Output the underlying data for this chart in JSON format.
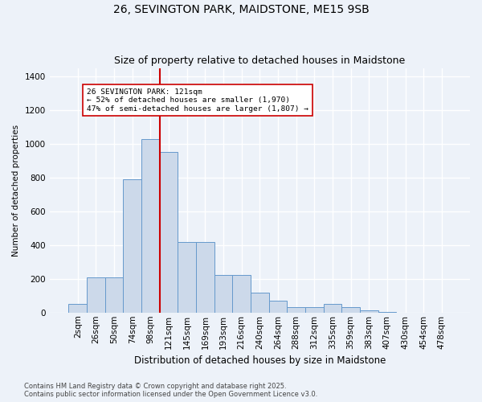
{
  "title": "26, SEVINGTON PARK, MAIDSTONE, ME15 9SB",
  "subtitle": "Size of property relative to detached houses in Maidstone",
  "xlabel": "Distribution of detached houses by size in Maidstone",
  "ylabel": "Number of detached properties",
  "categories": [
    "2sqm",
    "26sqm",
    "50sqm",
    "74sqm",
    "98sqm",
    "121sqm",
    "145sqm",
    "169sqm",
    "193sqm",
    "216sqm",
    "240sqm",
    "264sqm",
    "288sqm",
    "312sqm",
    "335sqm",
    "359sqm",
    "383sqm",
    "407sqm",
    "430sqm",
    "454sqm",
    "478sqm"
  ],
  "values": [
    50,
    210,
    210,
    790,
    1030,
    950,
    420,
    420,
    225,
    225,
    120,
    70,
    30,
    30,
    50,
    30,
    15,
    5,
    0,
    0,
    0
  ],
  "bar_color": "#ccd9ea",
  "bar_edge_color": "#6699cc",
  "vline_x_index": 5,
  "vline_color": "#cc0000",
  "annotation_text": "26 SEVINGTON PARK: 121sqm\n← 52% of detached houses are smaller (1,970)\n47% of semi-detached houses are larger (1,807) →",
  "annotation_box_color": "#ffffff",
  "annotation_box_edge": "#cc0000",
  "bg_color": "#edf2f9",
  "grid_color": "#ffffff",
  "footnote": "Contains HM Land Registry data © Crown copyright and database right 2025.\nContains public sector information licensed under the Open Government Licence v3.0.",
  "ylim": [
    0,
    1450
  ],
  "yticks": [
    0,
    200,
    400,
    600,
    800,
    1000,
    1200,
    1400
  ],
  "title_fontsize": 10,
  "subtitle_fontsize": 9,
  "xlabel_fontsize": 8.5,
  "ylabel_fontsize": 7.5,
  "tick_fontsize": 7.5,
  "footnote_fontsize": 6
}
